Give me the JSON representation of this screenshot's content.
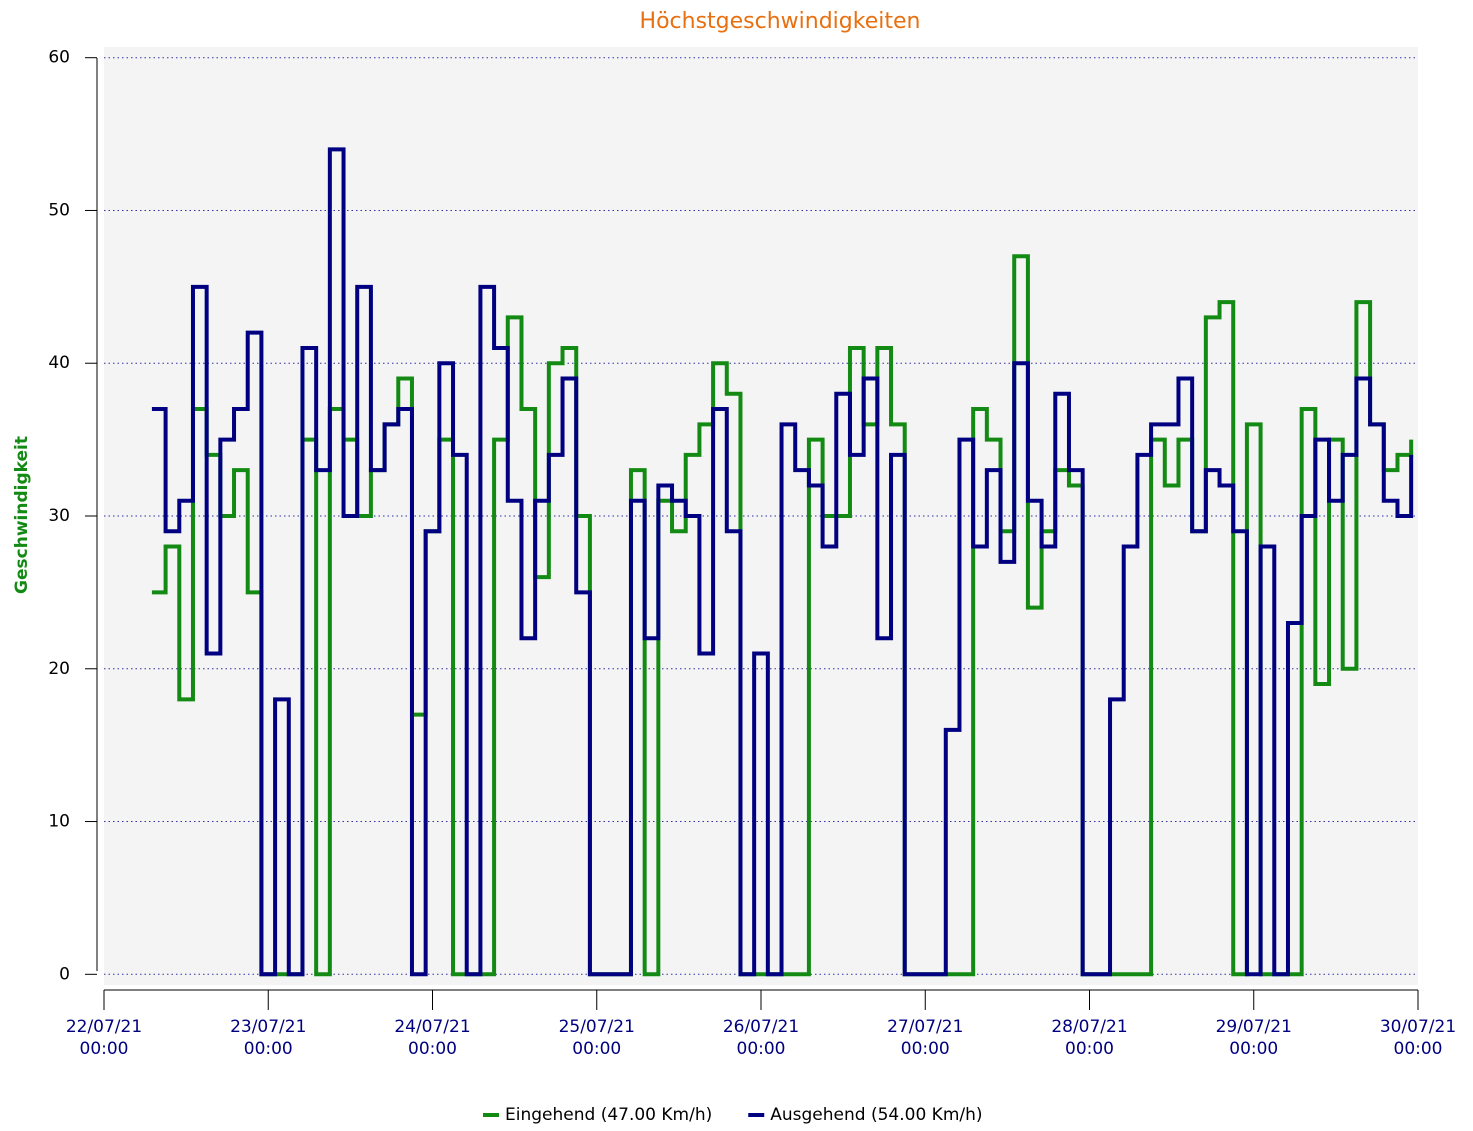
{
  "chart_data": {
    "type": "line",
    "step": true,
    "title": "Höchstgeschwindigkeiten",
    "y_label": "Geschwindigkeit",
    "xlim": [
      0,
      192
    ],
    "xticks": [
      {
        "value": 0,
        "label": "22/07/21\n00:00"
      },
      {
        "value": 24,
        "label": "23/07/21\n00:00"
      },
      {
        "value": 48,
        "label": "24/07/21\n00:00"
      },
      {
        "value": 72,
        "label": "25/07/21\n00:00"
      },
      {
        "value": 96,
        "label": "26/07/21\n00:00"
      },
      {
        "value": 120,
        "label": "27/07/21\n00:00"
      },
      {
        "value": 144,
        "label": "28/07/21\n00:00"
      },
      {
        "value": 168,
        "label": "29/07/21\n00:00"
      },
      {
        "value": 192,
        "label": "30/07/21\n00:00"
      }
    ],
    "ylim": [
      -0.7,
      60.7
    ],
    "yticks": [
      0,
      10,
      20,
      30,
      40,
      50,
      60
    ],
    "grid": true,
    "legend": "bottom",
    "x": [
      7,
      9,
      11,
      13,
      15,
      17,
      19,
      21,
      23,
      25,
      27,
      29,
      31,
      33,
      35,
      37,
      39,
      41,
      43,
      45,
      47,
      49,
      51,
      53,
      55,
      57,
      59,
      61,
      63,
      65,
      67,
      69,
      71,
      73,
      75,
      77,
      79,
      81,
      83,
      85,
      87,
      89,
      91,
      93,
      95,
      97,
      99,
      101,
      103,
      105,
      107,
      109,
      111,
      113,
      115,
      117,
      119,
      121,
      123,
      125,
      127,
      129,
      131,
      133,
      135,
      137,
      139,
      141,
      143,
      145,
      147,
      149,
      151,
      153,
      155,
      157,
      159,
      161,
      163,
      165,
      167,
      169,
      171,
      173,
      175,
      177,
      179,
      181,
      183,
      185,
      187,
      189,
      191
    ],
    "series": [
      {
        "name": "Eingehend (47.00 Km/h)",
        "color": "#138a13",
        "values": [
          25,
          28,
          18,
          37,
          34,
          30,
          33,
          25,
          0,
          0,
          0,
          35,
          0,
          37,
          35,
          30,
          33,
          36,
          39,
          17,
          29,
          35,
          0,
          0,
          0,
          35,
          43,
          37,
          26,
          40,
          41,
          30,
          0,
          0,
          0,
          33,
          0,
          31,
          29,
          34,
          36,
          40,
          38,
          0,
          0,
          0,
          0,
          0,
          35,
          30,
          30,
          41,
          36,
          41,
          36,
          0,
          0,
          0,
          0,
          0,
          37,
          35,
          29,
          47,
          24,
          29,
          33,
          32,
          0,
          0,
          0,
          0,
          0,
          35,
          32,
          35,
          29,
          43,
          44,
          0,
          36,
          0,
          0,
          0,
          37,
          19,
          35,
          20,
          44,
          36,
          33,
          34,
          35
        ]
      },
      {
        "name": "Ausgehend (54.00 Km/h)",
        "color": "#000080",
        "values": [
          37,
          29,
          31,
          45,
          21,
          35,
          37,
          42,
          0,
          18,
          0,
          41,
          33,
          54,
          30,
          45,
          33,
          36,
          37,
          0,
          29,
          40,
          34,
          0,
          45,
          41,
          31,
          22,
          31,
          34,
          39,
          25,
          0,
          0,
          0,
          31,
          22,
          32,
          31,
          30,
          21,
          37,
          29,
          0,
          21,
          0,
          36,
          33,
          32,
          28,
          38,
          34,
          39,
          22,
          34,
          0,
          0,
          0,
          16,
          35,
          28,
          33,
          27,
          40,
          31,
          28,
          38,
          33,
          0,
          0,
          18,
          28,
          34,
          36,
          36,
          39,
          29,
          33,
          32,
          29,
          0,
          28,
          0,
          23,
          30,
          35,
          31,
          34,
          39,
          36,
          31,
          30,
          34
        ]
      }
    ]
  }
}
